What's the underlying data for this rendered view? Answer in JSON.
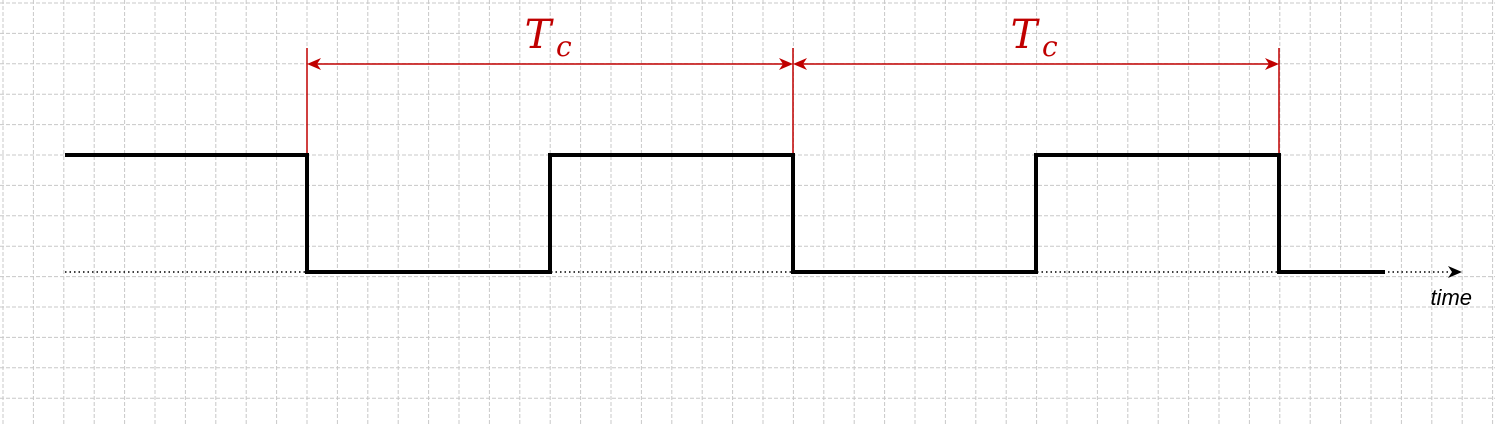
{
  "diagram": {
    "axis_label": "time",
    "colors": {
      "signal": "#000000",
      "annotation": "#c00000",
      "grid": "#c8c8c8",
      "baseline": "#000000"
    },
    "signal_levels": [
      "high",
      "low",
      "low",
      "high",
      "low",
      "low",
      "high",
      "low"
    ],
    "period_annotations": [
      {
        "symbol": "T",
        "subscript": "c"
      },
      {
        "symbol": "T",
        "subscript": "c"
      }
    ]
  }
}
